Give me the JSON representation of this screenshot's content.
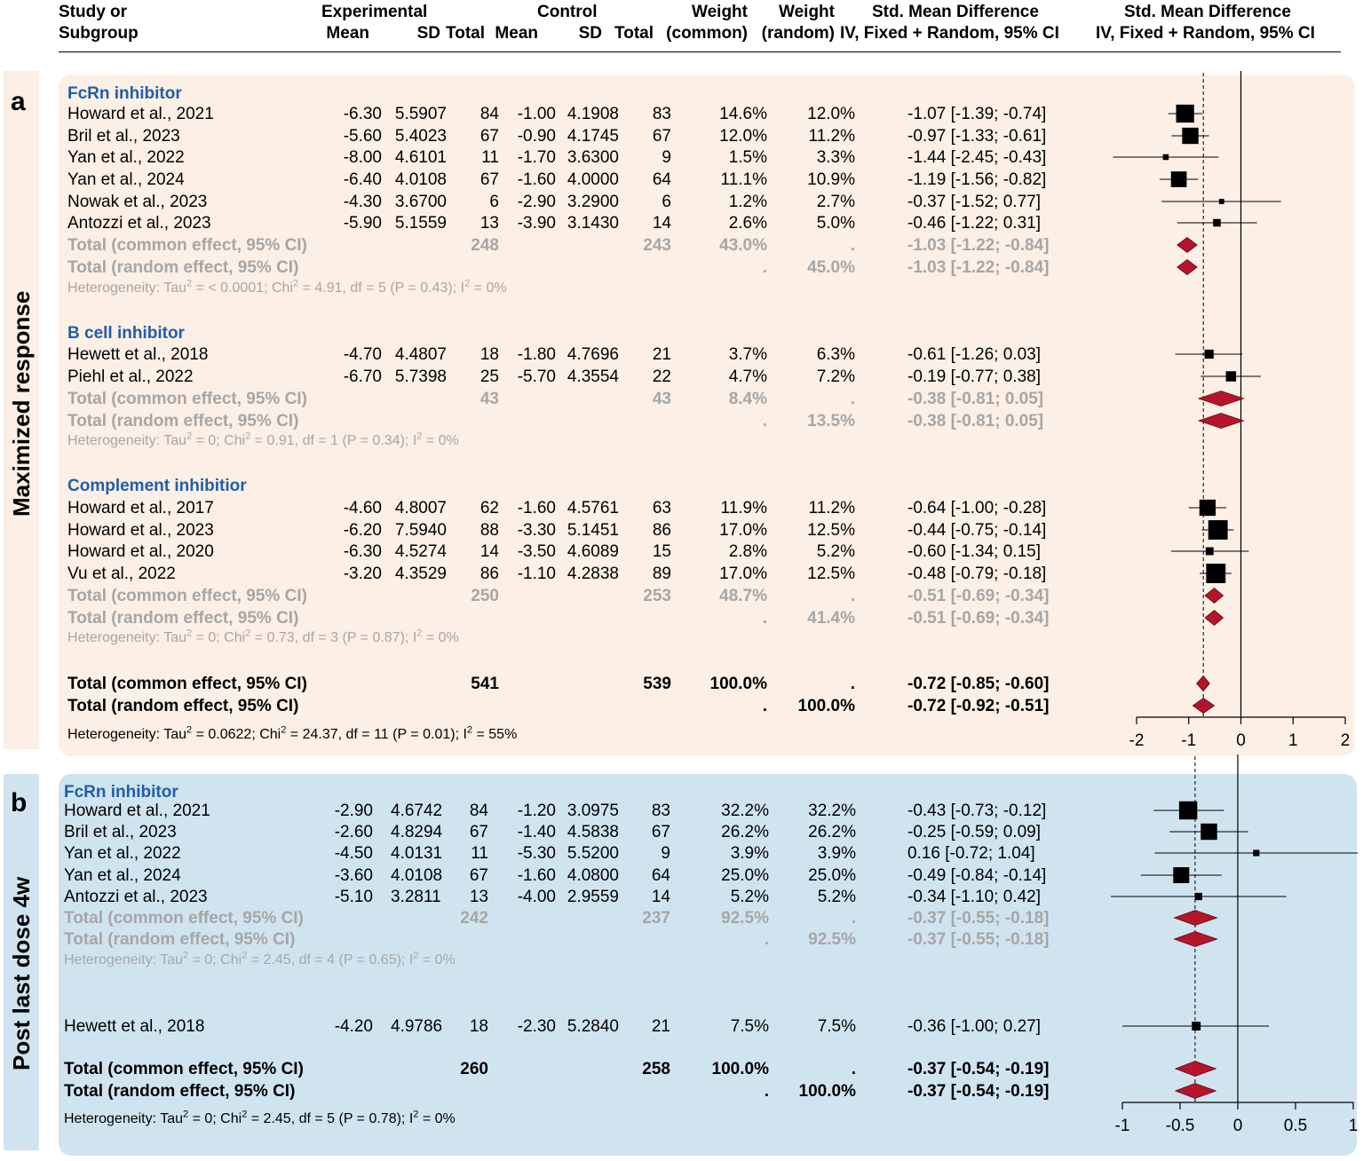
{
  "header": {
    "col1": [
      "Study or",
      "Subgroup"
    ],
    "experimental": "Experimental",
    "control": "Control",
    "mean": "Mean",
    "sd": "SD",
    "total": "Total",
    "weight": "Weight",
    "weight_common": "(common)",
    "weight_random": "(random)",
    "smd": "Std. Mean Difference",
    "method": "IV, Fixed + Random, 95% CI"
  },
  "panels": [
    {
      "letter": "a",
      "side_label": "Maximized response",
      "groups": [
        {
          "name": "FcRn inhibitor",
          "studies": [
            {
              "study": "Howard et al., 2021",
              "e_mean": "-6.30",
              "e_sd": "5.5907",
              "e_total": "84",
              "c_mean": "-1.00",
              "c_sd": "4.1908",
              "c_total": "83",
              "w_common": "14.6%",
              "w_random": "12.0%",
              "ci": "-1.07 [-1.39; -0.74]"
            },
            {
              "study": "Bril et al., 2023",
              "e_mean": "-5.60",
              "e_sd": "5.4023",
              "e_total": "67",
              "c_mean": "-0.90",
              "c_sd": "4.1745",
              "c_total": "67",
              "w_common": "12.0%",
              "w_random": "11.2%",
              "ci": "-0.97 [-1.33; -0.61]"
            },
            {
              "study": "Yan et al., 2022",
              "e_mean": "-8.00",
              "e_sd": "4.6101",
              "e_total": "11",
              "c_mean": "-1.70",
              "c_sd": "3.6300",
              "c_total": "9",
              "w_common": "1.5%",
              "w_random": "3.3%",
              "ci": "-1.44 [-2.45; -0.43]"
            },
            {
              "study": "Yan et al., 2024",
              "e_mean": "-6.40",
              "e_sd": "4.0108",
              "e_total": "67",
              "c_mean": "-1.60",
              "c_sd": "4.0000",
              "c_total": "64",
              "w_common": "11.1%",
              "w_random": "10.9%",
              "ci": "-1.19 [-1.56; -0.82]"
            },
            {
              "study": "Nowak et al., 2023",
              "e_mean": "-4.30",
              "e_sd": "3.6700",
              "e_total": "6",
              "c_mean": "-2.90",
              "c_sd": "3.2900",
              "c_total": "6",
              "w_common": "1.2%",
              "w_random": "2.7%",
              "ci": "-0.37 [-1.52;  0.77]"
            },
            {
              "study": "Antozzi et al., 2023",
              "e_mean": "-5.90",
              "e_sd": "5.1559",
              "e_total": "13",
              "c_mean": "-3.90",
              "c_sd": "3.1430",
              "c_total": "14",
              "w_common": "2.6%",
              "w_random": "5.0%",
              "ci": "-0.46 [-1.22;  0.31]"
            }
          ],
          "common": {
            "label": "Total (common effect, 95% CI)",
            "e_total": "248",
            "c_total": "243",
            "w_common": "43.0%",
            "w_random": ".",
            "ci": "-1.03 [-1.22; -0.84]"
          },
          "random": {
            "label": "Total (random effect, 95% CI)",
            "w_common": ".",
            "w_random": "45.0%",
            "ci": "-1.03 [-1.22; -0.84]"
          },
          "het": {
            "tau": "< 0.0001",
            "chi": "4.91",
            "df": "5",
            "p": "0.43",
            "i2": "0%"
          }
        },
        {
          "name": "B cell inhibitor",
          "studies": [
            {
              "study": "Hewett et al., 2018",
              "e_mean": "-4.70",
              "e_sd": "4.4807",
              "e_total": "18",
              "c_mean": "-1.80",
              "c_sd": "4.7696",
              "c_total": "21",
              "w_common": "3.7%",
              "w_random": "6.3%",
              "ci": "-0.61 [-1.26;  0.03]"
            },
            {
              "study": "Piehl et al., 2022",
              "e_mean": "-6.70",
              "e_sd": "5.7398",
              "e_total": "25",
              "c_mean": "-5.70",
              "c_sd": "4.3554",
              "c_total": "22",
              "w_common": "4.7%",
              "w_random": "7.2%",
              "ci": "-0.19 [-0.77;  0.38]"
            }
          ],
          "common": {
            "label": "Total (common effect, 95% CI)",
            "e_total": "43",
            "c_total": "43",
            "w_common": "8.4%",
            "w_random": ".",
            "ci": "-0.38 [-0.81;  0.05]"
          },
          "random": {
            "label": "Total (random effect, 95% CI)",
            "w_common": ".",
            "w_random": "13.5%",
            "ci": "-0.38 [-0.81;  0.05]"
          },
          "het": {
            "tau": "0",
            "chi": "0.91",
            "df": "1",
            "p": "0.34",
            "i2": "0%"
          }
        },
        {
          "name": "Complement inhibitior",
          "studies": [
            {
              "study": "Howard et al., 2017",
              "e_mean": "-4.60",
              "e_sd": "4.8007",
              "e_total": "62",
              "c_mean": "-1.60",
              "c_sd": "4.5761",
              "c_total": "63",
              "w_common": "11.9%",
              "w_random": "11.2%",
              "ci": "-0.64 [-1.00; -0.28]"
            },
            {
              "study": "Howard et al., 2023",
              "e_mean": "-6.20",
              "e_sd": "7.5940",
              "e_total": "88",
              "c_mean": "-3.30",
              "c_sd": "5.1451",
              "c_total": "86",
              "w_common": "17.0%",
              "w_random": "12.5%",
              "ci": "-0.44 [-0.75; -0.14]"
            },
            {
              "study": "Howard et al., 2020",
              "e_mean": "-6.30",
              "e_sd": "4.5274",
              "e_total": "14",
              "c_mean": "-3.50",
              "c_sd": "4.6089",
              "c_total": "15",
              "w_common": "2.8%",
              "w_random": "5.2%",
              "ci": "-0.60 [-1.34;  0.15]"
            },
            {
              "study": "Vu et al., 2022",
              "e_mean": "-3.20",
              "e_sd": "4.3529",
              "e_total": "86",
              "c_mean": "-1.10",
              "c_sd": "4.2838",
              "c_total": "89",
              "w_common": "17.0%",
              "w_random": "12.5%",
              "ci": "-0.48 [-0.79; -0.18]"
            }
          ],
          "common": {
            "label": "Total (common effect, 95% CI)",
            "e_total": "250",
            "c_total": "253",
            "w_common": "48.7%",
            "w_random": ".",
            "ci": "-0.51 [-0.69; -0.34]"
          },
          "random": {
            "label": "Total (random effect, 95% CI)",
            "w_common": ".",
            "w_random": "41.4%",
            "ci": "-0.51 [-0.69; -0.34]"
          },
          "het": {
            "tau": "0",
            "chi": "0.73",
            "df": "3",
            "p": "0.87",
            "i2": "0%"
          }
        }
      ],
      "overall_common": {
        "label": "Total (common effect, 95% CI)",
        "e_total": "541",
        "c_total": "539",
        "w_common": "100.0%",
        "w_random": ".",
        "ci": "-0.72 [-0.85; -0.60]"
      },
      "overall_random": {
        "label": "Total (random effect, 95% CI)",
        "w_common": ".",
        "w_random": "100.0%",
        "ci": "-0.72 [-0.92; -0.51]"
      },
      "overall_het": {
        "tau": "0.0622",
        "chi": "24.37",
        "df": "11",
        "p": "0.01",
        "i2": "55%"
      }
    },
    {
      "letter": "b",
      "side_label": "Post last dose 4w",
      "groups": [
        {
          "name": "FcRn inhibitor",
          "studies": [
            {
              "study": "Howard et al., 2021",
              "e_mean": "-2.90",
              "e_sd": "4.6742",
              "e_total": "84",
              "c_mean": "-1.20",
              "c_sd": "3.0975",
              "c_total": "83",
              "w_common": "32.2%",
              "w_random": "32.2%",
              "ci": "-0.43 [-0.73; -0.12]"
            },
            {
              "study": "Bril et al., 2023",
              "e_mean": "-2.60",
              "e_sd": "4.8294",
              "e_total": "67",
              "c_mean": "-1.40",
              "c_sd": "4.5838",
              "c_total": "67",
              "w_common": "26.2%",
              "w_random": "26.2%",
              "ci": "-0.25 [-0.59;  0.09]"
            },
            {
              "study": "Yan et al., 2022",
              "e_mean": "-4.50",
              "e_sd": "4.0131",
              "e_total": "11",
              "c_mean": "-5.30",
              "c_sd": "5.5200",
              "c_total": "9",
              "w_common": "3.9%",
              "w_random": "3.9%",
              "ci": "0.16 [-0.72;  1.04]"
            },
            {
              "study": "Yan et al., 2024",
              "e_mean": "-3.60",
              "e_sd": "4.0108",
              "e_total": "67",
              "c_mean": "-1.60",
              "c_sd": "4.0800",
              "c_total": "64",
              "w_common": "25.0%",
              "w_random": "25.0%",
              "ci": "-0.49 [-0.84; -0.14]"
            },
            {
              "study": "Antozzi et al., 2023",
              "e_mean": "-5.10",
              "e_sd": "3.2811",
              "e_total": "13",
              "c_mean": "-4.00",
              "c_sd": "2.9559",
              "c_total": "14",
              "w_common": "5.2%",
              "w_random": "5.2%",
              "ci": "-0.34 [-1.10;  0.42]"
            }
          ],
          "common": {
            "label": "Total (common effect, 95% CI)",
            "e_total": "242",
            "c_total": "237",
            "w_common": "92.5%",
            "w_random": ".",
            "ci": "-0.37 [-0.55; -0.18]"
          },
          "random": {
            "label": "Total (random effect, 95% CI)",
            "w_common": ".",
            "w_random": "92.5%",
            "ci": "-0.37 [-0.55; -0.18]"
          },
          "het": {
            "tau": "0",
            "chi": "2.45",
            "df": "4",
            "p": "0.65",
            "i2": "0%"
          }
        },
        {
          "name": "",
          "studies": [
            {
              "study": "Hewett et al., 2018",
              "e_mean": "-4.20",
              "e_sd": "4.9786",
              "e_total": "18",
              "c_mean": "-2.30",
              "c_sd": "5.2840",
              "c_total": "21",
              "w_common": "7.5%",
              "w_random": "7.5%",
              "ci": "-0.36 [-1.00;  0.27]"
            }
          ]
        }
      ],
      "overall_common": {
        "label": "Total (common effect, 95% CI)",
        "e_total": "260",
        "c_total": "258",
        "w_common": "100.0%",
        "w_random": ".",
        "ci": "-0.37 [-0.54; -0.19]"
      },
      "overall_random": {
        "label": "Total (random effect, 95% CI)",
        "w_common": ".",
        "w_random": "100.0%",
        "ci": "-0.37 [-0.54; -0.19]"
      },
      "overall_het": {
        "tau": "0",
        "chi": "2.45",
        "df": "5",
        "p": "0.78",
        "i2": "0%"
      }
    }
  ],
  "chart_data": [
    {
      "type": "forest",
      "title": "Maximized response",
      "xlim": [
        -2,
        2
      ],
      "ticks": [
        "-2",
        "-1",
        "0",
        "1",
        "2"
      ],
      "reference_line": -0.72,
      "studies": [
        {
          "name": "Howard et al., 2021",
          "est": -1.07,
          "lo": -1.39,
          "hi": -0.74,
          "weight": 14.6
        },
        {
          "name": "Bril et al., 2023",
          "est": -0.97,
          "lo": -1.33,
          "hi": -0.61,
          "weight": 12.0
        },
        {
          "name": "Yan et al., 2022",
          "est": -1.44,
          "lo": -2.45,
          "hi": -0.43,
          "weight": 1.5
        },
        {
          "name": "Yan et al., 2024",
          "est": -1.19,
          "lo": -1.56,
          "hi": -0.82,
          "weight": 11.1
        },
        {
          "name": "Nowak et al., 2023",
          "est": -0.37,
          "lo": -1.52,
          "hi": 0.77,
          "weight": 1.2
        },
        {
          "name": "Antozzi et al., 2023",
          "est": -0.46,
          "lo": -1.22,
          "hi": 0.31,
          "weight": 2.6
        },
        {
          "name": "Hewett et al., 2018",
          "est": -0.61,
          "lo": -1.26,
          "hi": 0.03,
          "weight": 3.7
        },
        {
          "name": "Piehl et al., 2022",
          "est": -0.19,
          "lo": -0.77,
          "hi": 0.38,
          "weight": 4.7
        },
        {
          "name": "Howard et al., 2017",
          "est": -0.64,
          "lo": -1.0,
          "hi": -0.28,
          "weight": 11.9
        },
        {
          "name": "Howard et al., 2023",
          "est": -0.44,
          "lo": -0.75,
          "hi": -0.14,
          "weight": 17.0
        },
        {
          "name": "Howard et al., 2020",
          "est": -0.6,
          "lo": -1.34,
          "hi": 0.15,
          "weight": 2.8
        },
        {
          "name": "Vu et al., 2022",
          "est": -0.48,
          "lo": -0.79,
          "hi": -0.18,
          "weight": 17.0
        }
      ],
      "diamonds": [
        {
          "name": "FcRn common",
          "est": -1.03,
          "lo": -1.22,
          "hi": -0.84
        },
        {
          "name": "FcRn random",
          "est": -1.03,
          "lo": -1.22,
          "hi": -0.84
        },
        {
          "name": "B cell common",
          "est": -0.38,
          "lo": -0.81,
          "hi": 0.05
        },
        {
          "name": "B cell random",
          "est": -0.38,
          "lo": -0.81,
          "hi": 0.05
        },
        {
          "name": "Complement common",
          "est": -0.51,
          "lo": -0.69,
          "hi": -0.34
        },
        {
          "name": "Complement random",
          "est": -0.51,
          "lo": -0.69,
          "hi": -0.34
        },
        {
          "name": "Overall common",
          "est": -0.72,
          "lo": -0.85,
          "hi": -0.6
        },
        {
          "name": "Overall random",
          "est": -0.72,
          "lo": -0.92,
          "hi": -0.51
        }
      ]
    },
    {
      "type": "forest",
      "title": "Post last dose 4w",
      "xlim": [
        -1,
        1
      ],
      "ticks": [
        "-1",
        "-0.5",
        "0",
        "0.5",
        "1"
      ],
      "reference_line": -0.37,
      "studies": [
        {
          "name": "Howard et al., 2021",
          "est": -0.43,
          "lo": -0.73,
          "hi": -0.12,
          "weight": 32.2
        },
        {
          "name": "Bril et al., 2023",
          "est": -0.25,
          "lo": -0.59,
          "hi": 0.09,
          "weight": 26.2
        },
        {
          "name": "Yan et al., 2022",
          "est": 0.16,
          "lo": -0.72,
          "hi": 1.04,
          "weight": 3.9
        },
        {
          "name": "Yan et al., 2024",
          "est": -0.49,
          "lo": -0.84,
          "hi": -0.14,
          "weight": 25.0
        },
        {
          "name": "Antozzi et al., 2023",
          "est": -0.34,
          "lo": -1.1,
          "hi": 0.42,
          "weight": 5.2
        },
        {
          "name": "Hewett et al., 2018",
          "est": -0.36,
          "lo": -1.0,
          "hi": 0.27,
          "weight": 7.5
        }
      ],
      "diamonds": [
        {
          "name": "FcRn common",
          "est": -0.37,
          "lo": -0.55,
          "hi": -0.18
        },
        {
          "name": "FcRn random",
          "est": -0.37,
          "lo": -0.55,
          "hi": -0.18
        },
        {
          "name": "Overall common",
          "est": -0.37,
          "lo": -0.54,
          "hi": -0.19
        },
        {
          "name": "Overall random",
          "est": -0.37,
          "lo": -0.54,
          "hi": -0.19
        }
      ]
    }
  ]
}
